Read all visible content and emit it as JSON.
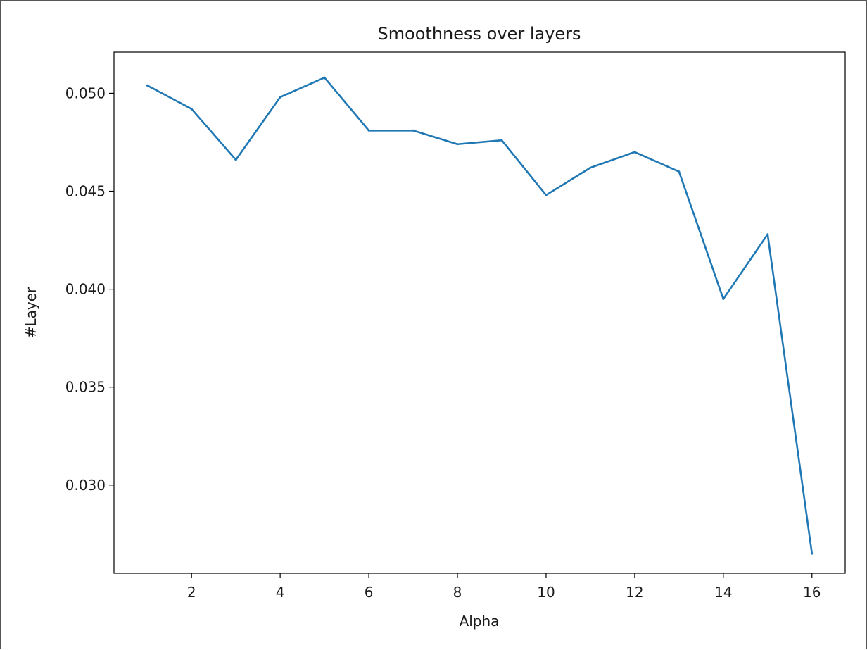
{
  "chart_data": {
    "type": "line",
    "title": "Smoothness over layers",
    "xlabel": "Alpha",
    "ylabel": "#Layer",
    "xlim": [
      0.25,
      16.75
    ],
    "ylim": [
      0.0255,
      0.0521
    ],
    "xticks": [
      2,
      4,
      6,
      8,
      10,
      12,
      14,
      16
    ],
    "xtick_labels": [
      "2",
      "4",
      "6",
      "8",
      "10",
      "12",
      "14",
      "16"
    ],
    "yticks": [
      0.03,
      0.035,
      0.04,
      0.045,
      0.05
    ],
    "ytick_labels": [
      "0.030",
      "0.035",
      "0.040",
      "0.045",
      "0.050"
    ],
    "grid": false,
    "series": [
      {
        "color": "#1f77b4",
        "x": [
          1,
          2,
          3,
          4,
          5,
          6,
          7,
          8,
          9,
          10,
          11,
          12,
          13,
          14,
          15,
          16
        ],
        "y": [
          0.0504,
          0.0492,
          0.0466,
          0.0498,
          0.0508,
          0.0481,
          0.0481,
          0.0474,
          0.0476,
          0.0448,
          0.0462,
          0.047,
          0.046,
          0.0395,
          0.0428,
          0.0265
        ]
      }
    ]
  }
}
